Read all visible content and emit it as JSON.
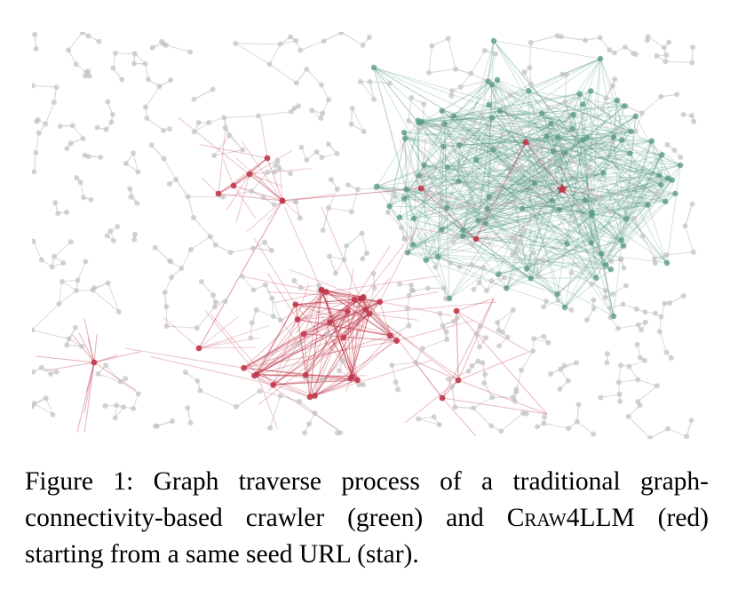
{
  "figure": {
    "colors": {
      "background_nodes": "#c4c4c4",
      "background_edges": "#d2d2d2",
      "green": "#5b9b86",
      "red": "#c0394b"
    },
    "icons": {
      "seed": "star-icon"
    }
  },
  "caption": {
    "label": "Figure 1:",
    "text_before": "Graph traverse process of a traditional graph-connectivity-based crawler (green) and ",
    "method_name": "Craw4LLM",
    "text_after": " (red) starting from a same seed URL (star)."
  }
}
